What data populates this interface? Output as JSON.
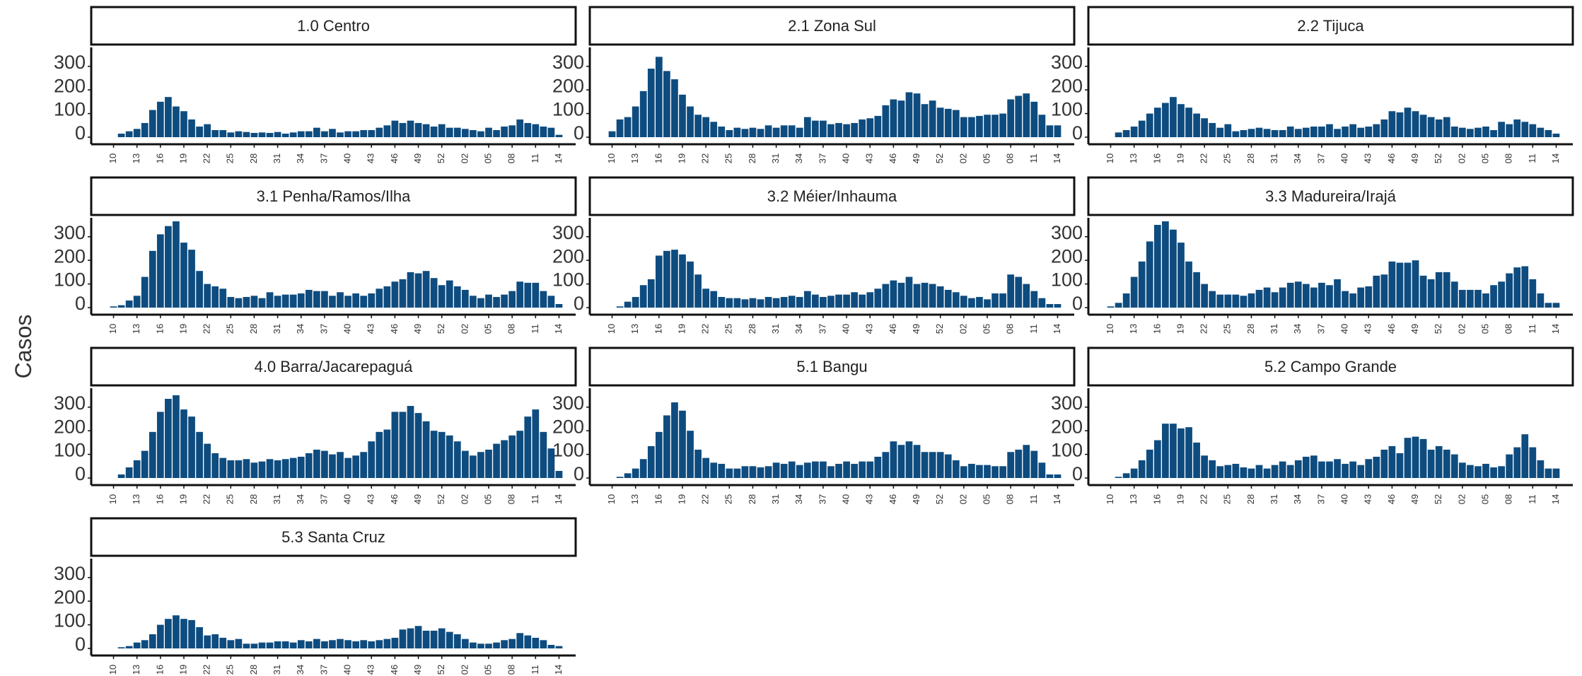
{
  "y_label": "Casos",
  "chart_data": [
    {
      "type": "bar",
      "title": "1.0 Centro",
      "color": "#0e4c7f",
      "ylim": [
        0,
        380
      ],
      "yticks": [
        0,
        100,
        200,
        300
      ],
      "categories": [
        "10",
        null,
        null,
        "13",
        null,
        null,
        "16",
        null,
        null,
        "19",
        null,
        null,
        "22",
        null,
        null,
        "25",
        null,
        null,
        "28",
        null,
        null,
        "31",
        null,
        null,
        "34",
        null,
        null,
        "37",
        null,
        null,
        "40",
        null,
        null,
        "43",
        null,
        null,
        "46",
        null,
        null,
        "49",
        null,
        null,
        "52",
        null,
        null,
        "02",
        null,
        null,
        "05",
        null,
        null,
        "08",
        null,
        null,
        "11",
        null,
        null,
        "14"
      ],
      "values": [
        0,
        15,
        25,
        35,
        60,
        115,
        150,
        170,
        130,
        110,
        75,
        45,
        55,
        30,
        30,
        20,
        25,
        22,
        18,
        20,
        18,
        22,
        15,
        20,
        25,
        25,
        40,
        25,
        35,
        20,
        25,
        25,
        30,
        30,
        40,
        50,
        70,
        60,
        70,
        60,
        55,
        45,
        55,
        40,
        40,
        35,
        30,
        25,
        40,
        30,
        45,
        50,
        75,
        60,
        55,
        45,
        40,
        10
      ]
    },
    {
      "type": "bar",
      "title": "2.1 Zona Sul",
      "color": "#0e4c7f",
      "ylim": [
        0,
        380
      ],
      "yticks": [
        0,
        100,
        200,
        300
      ],
      "categories": [
        "10",
        null,
        null,
        "13",
        null,
        null,
        "16",
        null,
        null,
        "19",
        null,
        null,
        "22",
        null,
        null,
        "25",
        null,
        null,
        "28",
        null,
        null,
        "31",
        null,
        null,
        "34",
        null,
        null,
        "37",
        null,
        null,
        "40",
        null,
        null,
        "43",
        null,
        null,
        "46",
        null,
        null,
        "49",
        null,
        null,
        "52",
        null,
        null,
        "02",
        null,
        null,
        "05",
        null,
        null,
        "08",
        null,
        null,
        "11",
        null,
        null,
        "14"
      ],
      "values": [
        25,
        75,
        85,
        130,
        195,
        290,
        340,
        280,
        245,
        180,
        130,
        95,
        85,
        65,
        45,
        30,
        40,
        35,
        40,
        35,
        50,
        40,
        50,
        50,
        40,
        85,
        70,
        70,
        55,
        60,
        55,
        60,
        75,
        80,
        90,
        135,
        160,
        155,
        190,
        185,
        140,
        155,
        125,
        120,
        115,
        85,
        85,
        90,
        95,
        95,
        100,
        160,
        175,
        185,
        150,
        95,
        50,
        50
      ]
    },
    {
      "type": "bar",
      "title": "2.2 Tijuca",
      "color": "#0e4c7f",
      "ylim": [
        0,
        380
      ],
      "yticks": [
        0,
        100,
        200,
        300
      ],
      "categories": [
        "10",
        null,
        null,
        "13",
        null,
        null,
        "16",
        null,
        null,
        "19",
        null,
        null,
        "22",
        null,
        null,
        "25",
        null,
        null,
        "28",
        null,
        null,
        "31",
        null,
        null,
        "34",
        null,
        null,
        "37",
        null,
        null,
        "40",
        null,
        null,
        "43",
        null,
        null,
        "46",
        null,
        null,
        "49",
        null,
        null,
        "52",
        null,
        null,
        "02",
        null,
        null,
        "05",
        null,
        null,
        "08",
        null,
        null,
        "11",
        null,
        null,
        "14"
      ],
      "values": [
        0,
        20,
        30,
        45,
        70,
        100,
        125,
        145,
        170,
        140,
        125,
        100,
        80,
        60,
        40,
        55,
        25,
        30,
        35,
        40,
        35,
        30,
        30,
        45,
        35,
        40,
        45,
        45,
        55,
        35,
        45,
        55,
        40,
        45,
        55,
        75,
        110,
        105,
        125,
        110,
        95,
        85,
        75,
        85,
        45,
        40,
        35,
        40,
        45,
        30,
        65,
        55,
        75,
        65,
        55,
        40,
        30,
        15
      ]
    },
    {
      "type": "bar",
      "title": "3.1 Penha/Ramos/Ilha",
      "color": "#0e4c7f",
      "ylim": [
        0,
        380
      ],
      "yticks": [
        0,
        100,
        200,
        300
      ],
      "categories": [
        "10",
        null,
        null,
        "13",
        null,
        null,
        "16",
        null,
        null,
        "19",
        null,
        null,
        "22",
        null,
        null,
        "25",
        null,
        null,
        "28",
        null,
        null,
        "31",
        null,
        null,
        "34",
        null,
        null,
        "37",
        null,
        null,
        "40",
        null,
        null,
        "43",
        null,
        null,
        "46",
        null,
        null,
        "49",
        null,
        null,
        "52",
        null,
        null,
        "02",
        null,
        null,
        "05",
        null,
        null,
        "08",
        null,
        null,
        "11",
        null,
        null,
        "14"
      ],
      "values": [
        5,
        10,
        30,
        50,
        130,
        240,
        310,
        345,
        365,
        275,
        245,
        155,
        100,
        90,
        80,
        45,
        40,
        45,
        50,
        40,
        65,
        50,
        55,
        55,
        60,
        75,
        70,
        70,
        50,
        65,
        50,
        60,
        50,
        60,
        80,
        90,
        110,
        120,
        150,
        145,
        155,
        125,
        95,
        115,
        90,
        75,
        50,
        40,
        55,
        45,
        55,
        70,
        110,
        105,
        105,
        70,
        50,
        15
      ]
    },
    {
      "type": "bar",
      "title": "3.2 Méier/Inhauma",
      "color": "#0e4c7f",
      "ylim": [
        0,
        380
      ],
      "yticks": [
        0,
        100,
        200,
        300
      ],
      "categories": [
        "10",
        null,
        null,
        "13",
        null,
        null,
        "16",
        null,
        null,
        "19",
        null,
        null,
        "22",
        null,
        null,
        "25",
        null,
        null,
        "28",
        null,
        null,
        "31",
        null,
        null,
        "34",
        null,
        null,
        "37",
        null,
        null,
        "40",
        null,
        null,
        "43",
        null,
        null,
        "46",
        null,
        null,
        "49",
        null,
        null,
        "52",
        null,
        null,
        "02",
        null,
        null,
        "05",
        null,
        null,
        "08",
        null,
        null,
        "11",
        null,
        null,
        "14"
      ],
      "values": [
        0,
        5,
        25,
        45,
        95,
        120,
        220,
        240,
        245,
        225,
        195,
        140,
        80,
        70,
        45,
        40,
        40,
        35,
        40,
        35,
        45,
        40,
        45,
        50,
        45,
        70,
        55,
        45,
        50,
        55,
        55,
        65,
        55,
        65,
        80,
        100,
        115,
        105,
        130,
        100,
        105,
        100,
        90,
        75,
        65,
        50,
        40,
        45,
        35,
        60,
        60,
        140,
        130,
        100,
        70,
        40,
        15,
        15
      ]
    },
    {
      "type": "bar",
      "title": "3.3 Madureira/Irajá",
      "color": "#0e4c7f",
      "ylim": [
        0,
        380
      ],
      "yticks": [
        0,
        100,
        200,
        300
      ],
      "categories": [
        "10",
        null,
        null,
        "13",
        null,
        null,
        "16",
        null,
        null,
        "19",
        null,
        null,
        "22",
        null,
        null,
        "25",
        null,
        null,
        "28",
        null,
        null,
        "31",
        null,
        null,
        "34",
        null,
        null,
        "37",
        null,
        null,
        "40",
        null,
        null,
        "43",
        null,
        null,
        "46",
        null,
        null,
        "49",
        null,
        null,
        "52",
        null,
        null,
        "02",
        null,
        null,
        "05",
        null,
        null,
        "08",
        null,
        null,
        "11",
        null,
        null,
        "14"
      ],
      "values": [
        5,
        20,
        60,
        130,
        195,
        280,
        350,
        365,
        330,
        275,
        195,
        150,
        100,
        70,
        55,
        55,
        55,
        50,
        60,
        75,
        85,
        65,
        85,
        105,
        110,
        100,
        85,
        105,
        95,
        120,
        70,
        60,
        85,
        90,
        135,
        140,
        195,
        190,
        190,
        200,
        135,
        120,
        150,
        150,
        110,
        75,
        75,
        75,
        60,
        95,
        110,
        145,
        170,
        175,
        120,
        60,
        20,
        20
      ]
    },
    {
      "type": "bar",
      "title": "4.0 Barra/Jacarepaguá",
      "color": "#0e4c7f",
      "ylim": [
        0,
        380
      ],
      "yticks": [
        0,
        100,
        200,
        300
      ],
      "categories": [
        "10",
        null,
        null,
        "13",
        null,
        null,
        "16",
        null,
        null,
        "19",
        null,
        null,
        "22",
        null,
        null,
        "25",
        null,
        null,
        "28",
        null,
        null,
        "31",
        null,
        null,
        "34",
        null,
        null,
        "37",
        null,
        null,
        "40",
        null,
        null,
        "43",
        null,
        null,
        "46",
        null,
        null,
        "49",
        null,
        null,
        "52",
        null,
        null,
        "02",
        null,
        null,
        "05",
        null,
        null,
        "08",
        null,
        null,
        "11",
        null,
        null,
        "14"
      ],
      "values": [
        0,
        15,
        45,
        75,
        115,
        195,
        280,
        335,
        350,
        290,
        260,
        195,
        145,
        105,
        85,
        75,
        75,
        80,
        65,
        70,
        80,
        75,
        80,
        85,
        90,
        105,
        120,
        115,
        100,
        110,
        85,
        95,
        110,
        155,
        195,
        205,
        280,
        280,
        305,
        275,
        240,
        200,
        195,
        180,
        155,
        115,
        95,
        110,
        120,
        145,
        160,
        180,
        200,
        260,
        290,
        195,
        125,
        30
      ]
    },
    {
      "type": "bar",
      "title": "5.1 Bangu",
      "color": "#0e4c7f",
      "ylim": [
        0,
        380
      ],
      "yticks": [
        0,
        100,
        200,
        300
      ],
      "categories": [
        "10",
        null,
        null,
        "13",
        null,
        null,
        "16",
        null,
        null,
        "19",
        null,
        null,
        "22",
        null,
        null,
        "25",
        null,
        null,
        "28",
        null,
        null,
        "31",
        null,
        null,
        "34",
        null,
        null,
        "37",
        null,
        null,
        "40",
        null,
        null,
        "43",
        null,
        null,
        "46",
        null,
        null,
        "49",
        null,
        null,
        "52",
        null,
        null,
        "02",
        null,
        null,
        "05",
        null,
        null,
        "08",
        null,
        null,
        "11",
        null,
        null,
        "14"
      ],
      "values": [
        0,
        5,
        20,
        40,
        80,
        135,
        195,
        265,
        320,
        285,
        200,
        120,
        85,
        65,
        60,
        40,
        40,
        50,
        50,
        45,
        50,
        65,
        60,
        70,
        55,
        65,
        70,
        70,
        50,
        60,
        70,
        60,
        70,
        70,
        90,
        110,
        155,
        140,
        155,
        140,
        110,
        110,
        110,
        100,
        75,
        50,
        60,
        55,
        55,
        50,
        50,
        110,
        120,
        140,
        115,
        65,
        15,
        15
      ]
    },
    {
      "type": "bar",
      "title": "5.2 Campo Grande",
      "color": "#0e4c7f",
      "ylim": [
        0,
        380
      ],
      "yticks": [
        0,
        100,
        200,
        300
      ],
      "categories": [
        "10",
        null,
        null,
        "13",
        null,
        null,
        "16",
        null,
        null,
        "19",
        null,
        null,
        "22",
        null,
        null,
        "25",
        null,
        null,
        "28",
        null,
        null,
        "31",
        null,
        null,
        "34",
        null,
        null,
        "37",
        null,
        null,
        "40",
        null,
        null,
        "43",
        null,
        null,
        "46",
        null,
        null,
        "49",
        null,
        null,
        "52",
        null,
        null,
        "02",
        null,
        null,
        "05",
        null,
        null,
        "08",
        null,
        null,
        "11",
        null,
        null,
        "14"
      ],
      "values": [
        0,
        5,
        20,
        40,
        75,
        120,
        160,
        230,
        230,
        210,
        215,
        150,
        95,
        75,
        50,
        55,
        60,
        45,
        40,
        55,
        40,
        55,
        70,
        55,
        75,
        90,
        95,
        70,
        70,
        80,
        60,
        70,
        55,
        80,
        90,
        120,
        135,
        105,
        170,
        175,
        165,
        120,
        135,
        120,
        100,
        65,
        55,
        50,
        60,
        45,
        50,
        100,
        130,
        185,
        130,
        75,
        40,
        40
      ]
    },
    {
      "type": "bar",
      "title": "5.3 Santa Cruz",
      "color": "#0e4c7f",
      "ylim": [
        0,
        380
      ],
      "yticks": [
        0,
        100,
        200,
        300
      ],
      "categories": [
        "10",
        null,
        null,
        "13",
        null,
        null,
        "16",
        null,
        null,
        "19",
        null,
        null,
        "22",
        null,
        null,
        "25",
        null,
        null,
        "28",
        null,
        null,
        "31",
        null,
        null,
        "34",
        null,
        null,
        "37",
        null,
        null,
        "40",
        null,
        null,
        "43",
        null,
        null,
        "46",
        null,
        null,
        "49",
        null,
        null,
        "52",
        null,
        null,
        "02",
        null,
        null,
        "05",
        null,
        null,
        "08",
        null,
        null,
        "11",
        null,
        null,
        "14"
      ],
      "values": [
        0,
        5,
        10,
        25,
        35,
        60,
        100,
        125,
        140,
        125,
        120,
        90,
        55,
        60,
        45,
        35,
        40,
        20,
        20,
        25,
        25,
        30,
        30,
        25,
        35,
        30,
        40,
        30,
        35,
        40,
        35,
        30,
        35,
        30,
        35,
        40,
        45,
        80,
        85,
        95,
        75,
        75,
        85,
        70,
        60,
        40,
        25,
        20,
        20,
        25,
        35,
        40,
        65,
        55,
        45,
        35,
        15,
        10
      ]
    }
  ]
}
